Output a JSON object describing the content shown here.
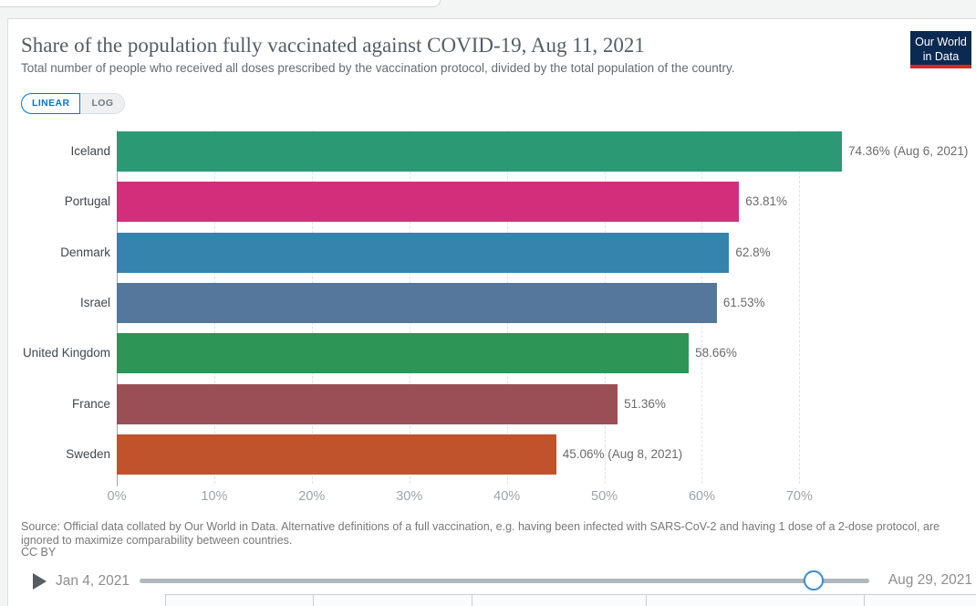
{
  "header": {
    "logo": {
      "line1": "Our World",
      "line2": "in Data"
    }
  },
  "toggle": {
    "linear": "LINEAR",
    "log": "LOG"
  },
  "chart_data": {
    "type": "bar",
    "orientation": "horizontal",
    "title": "Share of the population fully vaccinated against COVID-19, Aug 11, 2021",
    "subtitle": "Total number of people who received all doses prescribed by the vaccination protocol, divided by the total population of the country.",
    "categories": [
      "Iceland",
      "Portugal",
      "Denmark",
      "Israel",
      "United Kingdom",
      "France",
      "Sweden"
    ],
    "values": [
      74.36,
      63.81,
      62.8,
      61.53,
      58.66,
      51.36,
      45.06
    ],
    "value_labels": [
      "74.36% (Aug 6, 2021)",
      "63.81%",
      "62.8%",
      "61.53%",
      "58.66%",
      "51.36%",
      "45.06% (Aug 8, 2021)"
    ],
    "bar_colors": [
      "#2a9974",
      "#d32e7c",
      "#3484ad",
      "#54779b",
      "#2d9555",
      "#9a4f56",
      "#c0532b"
    ],
    "x_ticks": [
      "0%",
      "10%",
      "20%",
      "30%",
      "40%",
      "50%",
      "60%",
      "70%"
    ],
    "x_tick_values": [
      0,
      10,
      20,
      30,
      40,
      50,
      60,
      70
    ],
    "xlim": [
      0,
      74.36
    ],
    "grid": "dashed-vertical",
    "legend": "none"
  },
  "footer": {
    "source": "Source: Official data collated by Our World in Data. Alternative definitions of a full vaccination, e.g. having been infected with SARS-CoV-2 and having 1 dose of a 2-dose protocol, are ignored to maximize comparability between countries.",
    "license": "CC BY"
  },
  "timeline": {
    "start": "Jan 4, 2021",
    "end": "Aug 29, 2021"
  },
  "colors": {
    "accent_blue": "#0677ca",
    "logo_navy": "#0b2a52",
    "logo_red": "#d42b21",
    "slider_handle_blue": "#3e8ed0"
  }
}
